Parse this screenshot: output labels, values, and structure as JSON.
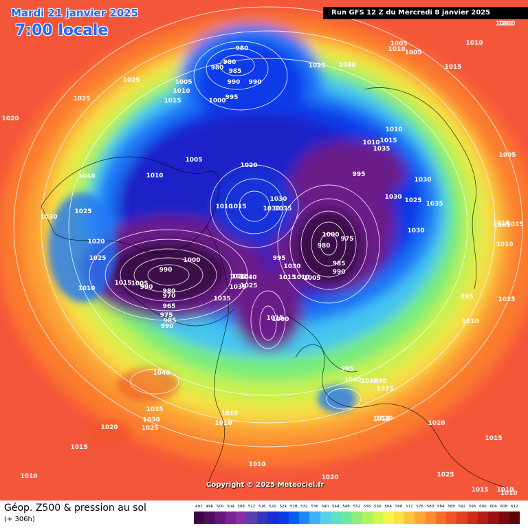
{
  "header": {
    "date": "Mardi 21 janvier 2025",
    "local_time": "7:00 locale",
    "run": "Run GFS 12 Z du Mercredi 8 janvier 2025"
  },
  "footer": {
    "field": "Géop. Z500 & pression au sol",
    "lead": "(+ 306h)",
    "copyright": "Copyright © 2025 Meteociel.fr"
  },
  "legend_scale": {
    "ticks": [
      "492",
      "496",
      "500",
      "504",
      "508",
      "512",
      "516",
      "520",
      "524",
      "528",
      "532",
      "536",
      "540",
      "544",
      "548",
      "552",
      "556",
      "560",
      "564",
      "568",
      "572",
      "576",
      "580",
      "584",
      "588",
      "592",
      "596",
      "600",
      "604",
      "608",
      "612"
    ],
    "colors": [
      "#3a0a48",
      "#4e0f63",
      "#64187e",
      "#7a2396",
      "#8a2da6",
      "#5a3fb0",
      "#3336c2",
      "#1c2bd3",
      "#0a3ae8",
      "#0060f2",
      "#1a88f8",
      "#3cb0fb",
      "#55d0ee",
      "#5ee0c4",
      "#6ae89c",
      "#8cf078",
      "#aef460",
      "#d2f64e",
      "#f4f44a",
      "#fce044",
      "#fcc43c",
      "#fca835",
      "#fc8a2e",
      "#fa6c28",
      "#f05424",
      "#e04020",
      "#cc2c1c",
      "#b41c18",
      "#9a1014",
      "#7e0810",
      "#5c0408"
    ]
  },
  "pressure_labels": [
    {
      "text": "980",
      "color": "#ffffff"
    },
    {
      "text": "980",
      "color": "#ffffff"
    },
    {
      "text": "985",
      "color": "#ffffff"
    },
    {
      "text": "980",
      "color": "#ffffff"
    },
    {
      "text": "990",
      "color": "#ffffff"
    },
    {
      "text": "990",
      "color": "#ffffff"
    },
    {
      "text": "995",
      "color": "#ffffff"
    },
    {
      "text": "1000",
      "color": "#ffffff"
    },
    {
      "text": "1005",
      "color": "#ffffff"
    },
    {
      "text": "1010",
      "color": "#ffffff"
    },
    {
      "text": "1015",
      "color": "#ffffff"
    },
    {
      "text": "1025",
      "color": "#ffffff"
    },
    {
      "text": "1025",
      "color": "#ffffff"
    },
    {
      "text": "1025",
      "color": "#ffffff"
    },
    {
      "text": "1030",
      "color": "#ffffff"
    },
    {
      "text": "1005",
      "color": "#ffffff"
    },
    {
      "text": "1010",
      "color": "#ffffff"
    },
    {
      "text": "1005",
      "color": "#ffffff"
    },
    {
      "text": "1005",
      "color": "#ffffff"
    },
    {
      "text": "1010",
      "color": "#ffffff"
    },
    {
      "text": "1015",
      "color": "#ffffff"
    },
    {
      "text": "1020",
      "color": "#ffffff"
    },
    {
      "text": "1040",
      "color": "#ffffff"
    },
    {
      "text": "1010",
      "color": "#ffffff"
    },
    {
      "text": "1005",
      "color": "#ffffff"
    },
    {
      "text": "1020",
      "color": "#ffffff"
    },
    {
      "text": "1010",
      "color": "#ffffff"
    },
    {
      "text": "1015",
      "color": "#ffffff"
    },
    {
      "text": "1030",
      "color": "#ffffff"
    },
    {
      "text": "1035",
      "color": "#ffffff"
    },
    {
      "text": "1030",
      "color": "#ffffff"
    },
    {
      "text": "1025",
      "color": "#ffffff"
    },
    {
      "text": "1020",
      "color": "#ffffff"
    },
    {
      "text": "1025",
      "color": "#ffffff"
    },
    {
      "text": "1010",
      "color": "#ffffff"
    },
    {
      "text": "1030",
      "color": "#ffffff"
    },
    {
      "text": "1040",
      "color": "#ffffff"
    },
    {
      "text": "1035",
      "color": "#ffffff"
    },
    {
      "text": "1030",
      "color": "#ffffff"
    },
    {
      "text": "990",
      "color": "#ffffff"
    },
    {
      "text": "1000",
      "color": "#ffffff"
    },
    {
      "text": "1015",
      "color": "#ffffff"
    },
    {
      "text": "1005",
      "color": "#ffffff"
    },
    {
      "text": "990",
      "color": "#ffffff"
    },
    {
      "text": "980",
      "color": "#ffffff"
    },
    {
      "text": "970",
      "color": "#ffffff"
    },
    {
      "text": "965",
      "color": "#ffffff"
    },
    {
      "text": "975",
      "color": "#ffffff"
    },
    {
      "text": "985",
      "color": "#ffffff"
    },
    {
      "text": "990",
      "color": "#ffffff"
    },
    {
      "text": "995",
      "color": "#ffffff"
    },
    {
      "text": "1035",
      "color": "#ffffff"
    },
    {
      "text": "1025",
      "color": "#ffffff"
    },
    {
      "text": "1020",
      "color": "#ffffff"
    },
    {
      "text": "1030",
      "color": "#ffffff"
    },
    {
      "text": "1015",
      "color": "#ffffff"
    },
    {
      "text": "1010",
      "color": "#ffffff"
    },
    {
      "text": "1005",
      "color": "#ffffff"
    },
    {
      "text": "1000",
      "color": "#ffffff"
    },
    {
      "text": "980",
      "color": "#ffffff"
    },
    {
      "text": "975",
      "color": "#ffffff"
    },
    {
      "text": "985",
      "color": "#ffffff"
    },
    {
      "text": "990",
      "color": "#ffffff"
    },
    {
      "text": "995",
      "color": "#ffffff"
    },
    {
      "text": "1030",
      "color": "#ffffff"
    },
    {
      "text": "1025",
      "color": "#ffffff"
    },
    {
      "text": "1030",
      "color": "#ffffff"
    },
    {
      "text": "1035",
      "color": "#ffffff"
    },
    {
      "text": "1030",
      "color": "#ffffff"
    },
    {
      "text": "1035",
      "color": "#ffffff"
    },
    {
      "text": "1015",
      "color": "#ffffff"
    },
    {
      "text": "1010",
      "color": "#ffffff"
    },
    {
      "text": "1010",
      "color": "#ffffff"
    },
    {
      "text": "1010",
      "color": "#ffffff"
    },
    {
      "text": "1005",
      "color": "#ffffff"
    },
    {
      "text": "1015",
      "color": "#ffffff"
    },
    {
      "text": "1010",
      "color": "#ffffff"
    },
    {
      "text": "1005",
      "color": "#ffffff"
    },
    {
      "text": "1010",
      "color": "#ffffff"
    },
    {
      "text": "995",
      "color": "#ffffff"
    },
    {
      "text": "1025",
      "color": "#ffffff"
    },
    {
      "text": "1010",
      "color": "#ffffff"
    },
    {
      "text": "1015",
      "color": "#ffffff"
    },
    {
      "text": "1000",
      "color": "#ffffff"
    },
    {
      "text": "995",
      "color": "#ffffff"
    },
    {
      "text": "1040",
      "color": "#ffffff"
    },
    {
      "text": "1035",
      "color": "#ffffff"
    },
    {
      "text": "1030",
      "color": "#ffffff"
    },
    {
      "text": "1025",
      "color": "#ffffff"
    },
    {
      "text": "1020",
      "color": "#ffffff"
    },
    {
      "text": "1015",
      "color": "#ffffff"
    },
    {
      "text": "1020",
      "color": "#ffffff"
    },
    {
      "text": "1015",
      "color": "#ffffff"
    },
    {
      "text": "1040",
      "color": "#ffffff"
    },
    {
      "text": "1035",
      "color": "#ffffff"
    },
    {
      "text": "1030",
      "color": "#ffffff"
    },
    {
      "text": "1025",
      "color": "#ffffff"
    },
    {
      "text": "1020",
      "color": "#ffffff"
    },
    {
      "text": "1015",
      "color": "#ffffff"
    },
    {
      "text": "1010",
      "color": "#ffffff"
    },
    {
      "text": "1020",
      "color": "#ffffff"
    },
    {
      "text": "1025",
      "color": "#ffffff"
    },
    {
      "text": "1015",
      "color": "#ffffff"
    },
    {
      "text": "1010",
      "color": "#ffffff"
    },
    {
      "text": "1010",
      "color": "#ffffff"
    },
    {
      "text": "1010",
      "color": "#ffffff"
    },
    {
      "text": "1010",
      "color": "#ffffff"
    },
    {
      "text": "1010",
      "color": "#ffffff"
    },
    {
      "text": "1020",
      "color": "#ffffff"
    },
    {
      "text": "1015",
      "color": "#ffffff"
    }
  ]
}
